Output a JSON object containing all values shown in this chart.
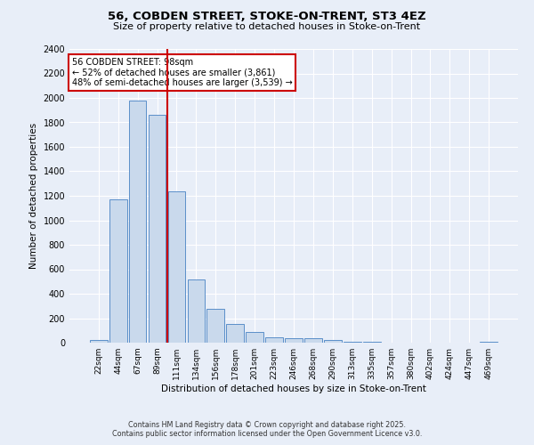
{
  "title": "56, COBDEN STREET, STOKE-ON-TRENT, ST3 4EZ",
  "subtitle": "Size of property relative to detached houses in Stoke-on-Trent",
  "xlabel": "Distribution of detached houses by size in Stoke-on-Trent",
  "ylabel": "Number of detached properties",
  "bar_labels": [
    "22sqm",
    "44sqm",
    "67sqm",
    "89sqm",
    "111sqm",
    "134sqm",
    "156sqm",
    "178sqm",
    "201sqm",
    "223sqm",
    "246sqm",
    "268sqm",
    "290sqm",
    "313sqm",
    "335sqm",
    "357sqm",
    "380sqm",
    "402sqm",
    "424sqm",
    "447sqm",
    "469sqm"
  ],
  "bar_values": [
    25,
    1170,
    1980,
    1860,
    1240,
    520,
    275,
    155,
    90,
    45,
    40,
    35,
    20,
    10,
    5,
    3,
    2,
    1,
    1,
    1,
    10
  ],
  "bar_color": "#c9d9ec",
  "bar_edge_color": "#5b8fc9",
  "red_line_x": 3.5,
  "annotation_title": "56 COBDEN STREET: 98sqm",
  "annotation_line1": "← 52% of detached houses are smaller (3,861)",
  "annotation_line2": "48% of semi-detached houses are larger (3,539) →",
  "annotation_box_color": "#ffffff",
  "annotation_box_edge": "#cc0000",
  "red_line_color": "#cc0000",
  "ylim": [
    0,
    2400
  ],
  "yticks": [
    0,
    200,
    400,
    600,
    800,
    1000,
    1200,
    1400,
    1600,
    1800,
    2000,
    2200,
    2400
  ],
  "background_color": "#e8eef8",
  "grid_color": "#ffffff",
  "footer_line1": "Contains HM Land Registry data © Crown copyright and database right 2025.",
  "footer_line2": "Contains public sector information licensed under the Open Government Licence v3.0."
}
